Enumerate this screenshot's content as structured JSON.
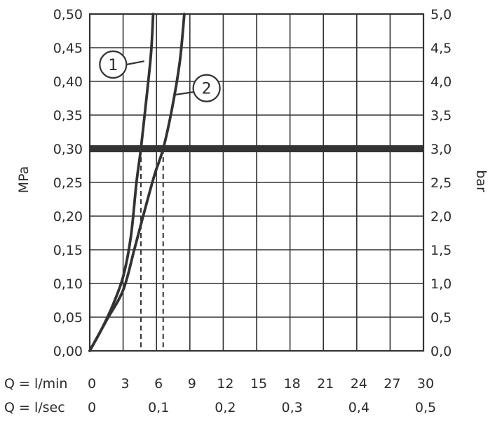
{
  "chart_data": {
    "type": "line",
    "ylabel_left": "MPa",
    "ylabel_right": "bar",
    "x_row_min_label": "Q = l/min",
    "x_row_sec_label": "Q = l/sec",
    "xlim": [
      0,
      30
    ],
    "ylim": [
      0,
      0.5
    ],
    "grid": true,
    "y_ticks_left": [
      "0,00",
      "0,05",
      "0,10",
      "0,15",
      "0,20",
      "0,25",
      "0,30",
      "0,35",
      "0,40",
      "0,45",
      "0,50"
    ],
    "y_ticks_right": [
      "0,0",
      "0,5",
      "1,0",
      "1,5",
      "2,0",
      "2,5",
      "3,0",
      "3,5",
      "4,0",
      "4,5",
      "5,0"
    ],
    "x_ticks_min": [
      "0",
      "3",
      "6",
      "9",
      "12",
      "15",
      "18",
      "21",
      "24",
      "27",
      "30"
    ],
    "x_ticks_sec": [
      {
        "label": "0",
        "x": 0
      },
      {
        "label": "0,1",
        "x": 6
      },
      {
        "label": "0,2",
        "x": 12
      },
      {
        "label": "0,3",
        "x": 18
      },
      {
        "label": "0,4",
        "x": 24
      },
      {
        "label": "0,5",
        "x": 30
      }
    ],
    "reference_line_y": 0.3,
    "series": [
      {
        "label": "1",
        "points": [
          [
            0,
            0
          ],
          [
            1,
            0.03
          ],
          [
            2,
            0.065
          ],
          [
            3,
            0.11
          ],
          [
            3.7,
            0.17
          ],
          [
            4.2,
            0.25
          ],
          [
            4.6,
            0.3
          ],
          [
            5.0,
            0.36
          ],
          [
            5.5,
            0.44
          ],
          [
            5.7,
            0.5
          ]
        ],
        "label_pos": [
          2.1,
          0.425
        ],
        "leader_to": [
          4.9,
          0.43
        ]
      },
      {
        "label": "2",
        "points": [
          [
            0,
            0
          ],
          [
            1.5,
            0.045
          ],
          [
            3,
            0.09
          ],
          [
            4,
            0.15
          ],
          [
            4.8,
            0.2
          ],
          [
            5.8,
            0.26
          ],
          [
            6.6,
            0.3
          ],
          [
            7.4,
            0.36
          ],
          [
            8.1,
            0.43
          ],
          [
            8.5,
            0.5
          ]
        ],
        "label_pos": [
          10.5,
          0.39
        ],
        "leader_to": [
          7.6,
          0.38
        ]
      }
    ],
    "drop_lines": [
      {
        "series": "1",
        "x": 4.6,
        "y": 0.3
      },
      {
        "series": "2",
        "x": 6.6,
        "y": 0.3
      }
    ]
  }
}
